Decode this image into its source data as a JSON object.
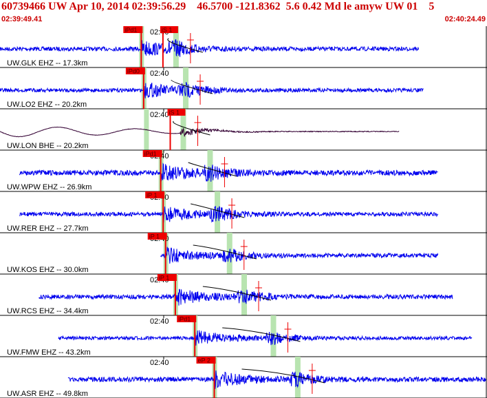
{
  "header": {
    "title": "60739466 UW Apr 10, 2014 02:39:56.29    46.5700 -121.8362  5.6 0.42 Md le amyw UW 01    5",
    "start_time": "02:39:49.41",
    "end_time": "02:40:24.49"
  },
  "colors": {
    "header_text": "#cc0000",
    "trace": "#0000ee",
    "trace_broadband": "#330033",
    "pick": "#ee0000",
    "window": "#b8e4b0",
    "grid": "#000000"
  },
  "time_label": "02:40",
  "traces": [
    {
      "label": "UW.GLK EHZ -- 17.3km",
      "p_pick": "iPd1",
      "s_pick": "iS 1",
      "p": 0.29,
      "s": 0.36,
      "start": 0.0,
      "end": 0.86,
      "amp": 0.3,
      "kind": "sp",
      "show_time": true
    },
    {
      "label": "UW.LO2 EHZ -- 20.2km",
      "p_pick": "iPd0",
      "s_pick": "",
      "p": 0.295,
      "s": 0.38,
      "start": 0.0,
      "end": 0.87,
      "amp": 0.25,
      "kind": "sp",
      "show_time": true
    },
    {
      "label": "UW.LON BHE -- 20.2km",
      "p_pick": "",
      "s_pick": "iS 1",
      "p": 0.3,
      "s": 0.375,
      "start": 0.0,
      "end": 0.82,
      "amp": 0.3,
      "kind": "bb",
      "show_time": true
    },
    {
      "label": "UW.WPW EHZ -- 26.9km",
      "p_pick": "iPd1",
      "s_pick": "",
      "p": 0.33,
      "s": 0.43,
      "start": 0.04,
      "end": 0.9,
      "amp": 0.45,
      "kind": "sp",
      "show_time": true
    },
    {
      "label": "UW.RER EHZ -- 27.7km",
      "p_pick": "iP 1",
      "s_pick": "",
      "p": 0.335,
      "s": 0.445,
      "start": 0.04,
      "end": 0.9,
      "amp": 0.3,
      "kind": "sp",
      "show_time": true
    },
    {
      "label": "UW.KOS EHZ -- 30.0km",
      "p_pick": "iP 1",
      "s_pick": "",
      "p": 0.34,
      "s": 0.47,
      "start": 0.33,
      "end": 0.9,
      "amp": 0.3,
      "kind": "sp",
      "show_time": true
    },
    {
      "label": "UW.RCS EHZ -- 34.4km",
      "p_pick": "iP 1",
      "s_pick": "",
      "p": 0.36,
      "s": 0.5,
      "start": 0.08,
      "end": 0.93,
      "amp": 0.35,
      "kind": "sp",
      "show_time": true
    },
    {
      "label": "UW.FMW EHZ -- 43.2km",
      "p_pick": "iPd1",
      "s_pick": "",
      "p": 0.4,
      "s": 0.56,
      "start": 0.12,
      "end": 0.97,
      "amp": 0.2,
      "kind": "sp",
      "show_time": true
    },
    {
      "label": "UW.ASR EHZ -- 49.8km",
      "p_pick": "eP 2",
      "s_pick": "",
      "p": 0.44,
      "s": 0.61,
      "start": 0.14,
      "end": 1.0,
      "amp": 0.4,
      "kind": "sp",
      "show_time": true
    }
  ]
}
